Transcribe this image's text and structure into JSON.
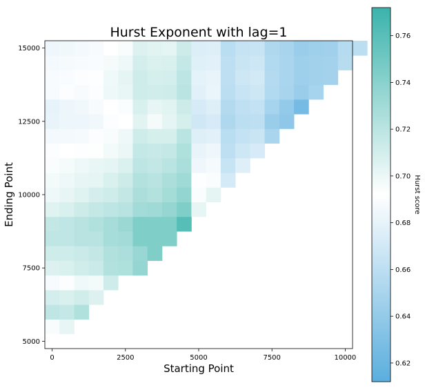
{
  "chart_data": {
    "type": "heatmap",
    "title": "Hurst Exponent with lag=1",
    "xlabel": "Starting Point",
    "ylabel": "Ending Point",
    "colorbar_label": "Hurst score",
    "x_start": 0,
    "y_start": 5000,
    "cell_step": 500,
    "xlim": [
      -250,
      10250
    ],
    "ylim": [
      4750,
      15250
    ],
    "x_ticks": [
      0,
      2500,
      5000,
      7500,
      10000
    ],
    "x_tick_labels": [
      "0",
      "2500",
      "5000",
      "7500",
      "10000"
    ],
    "y_ticks": [
      5000,
      7500,
      10000,
      12500,
      15000
    ],
    "y_tick_labels": [
      "5000",
      "7500",
      "10000",
      "12500",
      "15000"
    ],
    "colorbar_range": [
      0.612,
      0.772
    ],
    "colorbar_ticks": [
      0.62,
      0.64,
      0.66,
      0.68,
      0.7,
      0.72,
      0.74,
      0.76
    ],
    "colorbar_tick_labels": [
      "0.62",
      "0.64",
      "0.66",
      "0.68",
      "0.70",
      "0.72",
      "0.74",
      "0.76"
    ],
    "colors": {
      "low": "#5aaedd",
      "mid": "#ffffff",
      "high": "#3bb3ab",
      "mid_value": 0.692
    },
    "rows": [
      [
        0.692
      ],
      [
        0.695,
        0.702
      ],
      [
        0.718,
        0.716,
        0.724
      ],
      [
        0.71,
        0.708,
        0.711,
        0.706
      ],
      [
        0.688,
        0.69,
        0.698,
        0.697,
        0.712
      ],
      [
        0.706,
        0.708,
        0.711,
        0.714,
        0.723,
        0.725,
        0.735
      ],
      [
        0.712,
        0.712,
        0.714,
        0.717,
        0.724,
        0.726,
        0.734,
        0.744
      ],
      [
        0.718,
        0.718,
        0.721,
        0.721,
        0.728,
        0.73,
        0.744,
        0.744,
        0.744
      ],
      [
        0.717,
        0.718,
        0.721,
        0.724,
        0.728,
        0.733,
        0.744,
        0.744,
        0.744,
        0.761
      ],
      [
        0.705,
        0.708,
        0.713,
        0.716,
        0.719,
        0.721,
        0.73,
        0.731,
        0.735,
        0.744,
        0.702
      ],
      [
        0.699,
        0.702,
        0.705,
        0.71,
        0.712,
        0.717,
        0.726,
        0.723,
        0.729,
        0.736,
        0.694,
        0.703
      ],
      [
        0.697,
        0.699,
        0.702,
        0.703,
        0.708,
        0.713,
        0.723,
        0.721,
        0.726,
        0.731,
        0.691,
        0.694,
        0.671
      ],
      [
        0.694,
        0.696,
        0.699,
        0.701,
        0.703,
        0.707,
        0.719,
        0.717,
        0.72,
        0.727,
        0.684,
        0.687,
        0.665,
        0.676
      ],
      [
        0.69,
        0.692,
        0.691,
        0.693,
        0.697,
        0.7,
        0.716,
        0.715,
        0.716,
        0.725,
        0.681,
        0.684,
        0.66,
        0.668,
        0.672
      ],
      [
        0.686,
        0.686,
        0.687,
        0.69,
        0.695,
        0.699,
        0.712,
        0.709,
        0.709,
        0.72,
        0.676,
        0.678,
        0.658,
        0.663,
        0.666,
        0.651
      ],
      [
        0.681,
        0.683,
        0.683,
        0.685,
        0.69,
        0.692,
        0.704,
        0.696,
        0.703,
        0.709,
        0.669,
        0.672,
        0.653,
        0.659,
        0.66,
        0.643,
        0.637
      ],
      [
        0.68,
        0.683,
        0.685,
        0.688,
        0.692,
        0.694,
        0.708,
        0.702,
        0.704,
        0.713,
        0.672,
        0.676,
        0.655,
        0.661,
        0.663,
        0.649,
        0.64,
        0.625
      ],
      [
        0.688,
        0.69,
        0.688,
        0.69,
        0.699,
        0.701,
        0.712,
        0.711,
        0.712,
        0.72,
        0.678,
        0.682,
        0.659,
        0.665,
        0.668,
        0.654,
        0.65,
        0.643,
        0.649
      ],
      [
        0.688,
        0.689,
        0.69,
        0.691,
        0.698,
        0.703,
        0.712,
        0.709,
        0.71,
        0.719,
        0.679,
        0.681,
        0.66,
        0.668,
        0.67,
        0.655,
        0.651,
        0.645,
        0.647,
        0.648
      ],
      [
        0.686,
        0.687,
        0.688,
        0.689,
        0.696,
        0.699,
        0.71,
        0.707,
        0.708,
        0.716,
        0.677,
        0.678,
        0.66,
        0.666,
        0.668,
        0.654,
        0.651,
        0.645,
        0.647,
        0.648,
        0.657
      ],
      [
        0.684,
        0.685,
        0.686,
        0.688,
        0.692,
        0.695,
        0.706,
        0.704,
        0.703,
        0.713,
        0.675,
        0.676,
        0.658,
        0.664,
        0.665,
        0.653,
        0.65,
        0.643,
        0.645,
        0.646,
        0.656,
        0.659
      ]
    ]
  }
}
